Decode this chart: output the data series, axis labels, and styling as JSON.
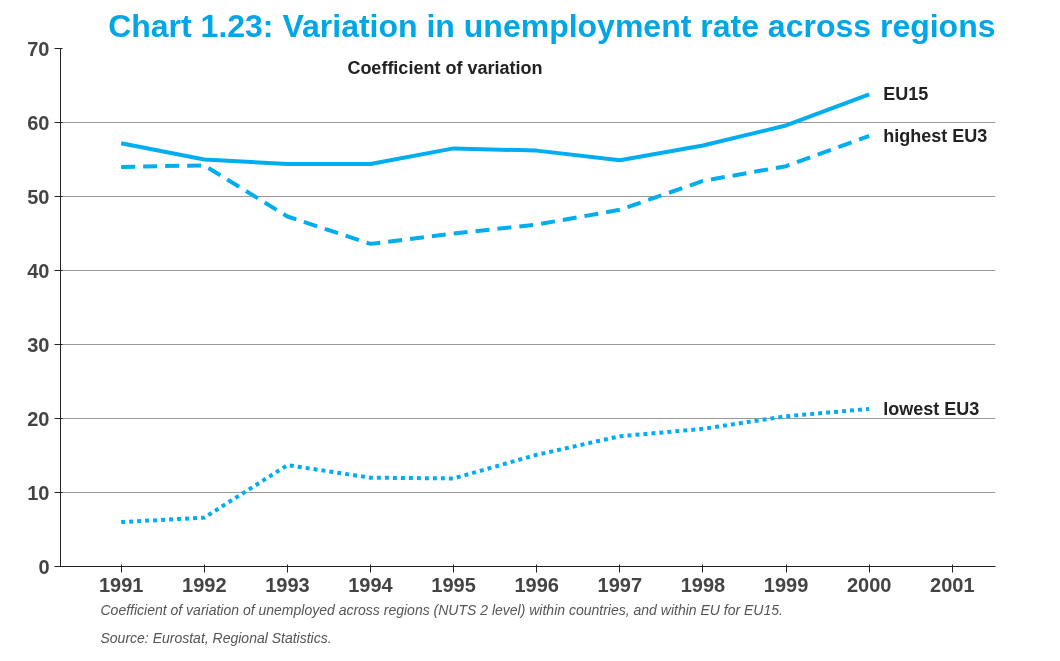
{
  "chart_data": {
    "type": "line",
    "title": "Chart 1.23: Variation in unemployment rate across regions",
    "x": [
      1991,
      1992,
      1993,
      1994,
      1995,
      1996,
      1997,
      1998,
      1999,
      2000
    ],
    "series": [
      {
        "name": "EU15",
        "color": "#00aeef",
        "line_style": "solid",
        "values": [
          57.2,
          55.0,
          54.4,
          54.4,
          56.5,
          56.2,
          54.9,
          56.9,
          59.6,
          63.8
        ]
      },
      {
        "name": "highest EU3",
        "color": "#00aeef",
        "line_style": "dashed",
        "values": [
          54.0,
          54.2,
          47.3,
          43.6,
          45.0,
          46.2,
          48.2,
          52.1,
          54.1,
          58.2
        ]
      },
      {
        "name": "lowest EU3",
        "color": "#00aeef",
        "line_style": "dotted",
        "values": [
          6.0,
          6.6,
          13.7,
          12.0,
          11.9,
          15.1,
          17.6,
          18.6,
          20.3,
          21.3
        ]
      }
    ],
    "xlim": [
      1990.27,
      2001.52
    ],
    "xticks": [
      1991,
      1992,
      1993,
      1994,
      1995,
      1996,
      1997,
      1998,
      1999,
      2000,
      2001
    ],
    "ylim": [
      0,
      70
    ],
    "yticks": [
      0,
      10,
      20,
      30,
      40,
      50,
      60,
      70
    ],
    "grid": "y",
    "annotations": [
      "Coefficient of variation",
      "Coefficient of variation of unemployed across regions (NUTS 2 level) within countries, and within EU for EU15.",
      "Source: Eurostat, Regional Statistics."
    ]
  }
}
